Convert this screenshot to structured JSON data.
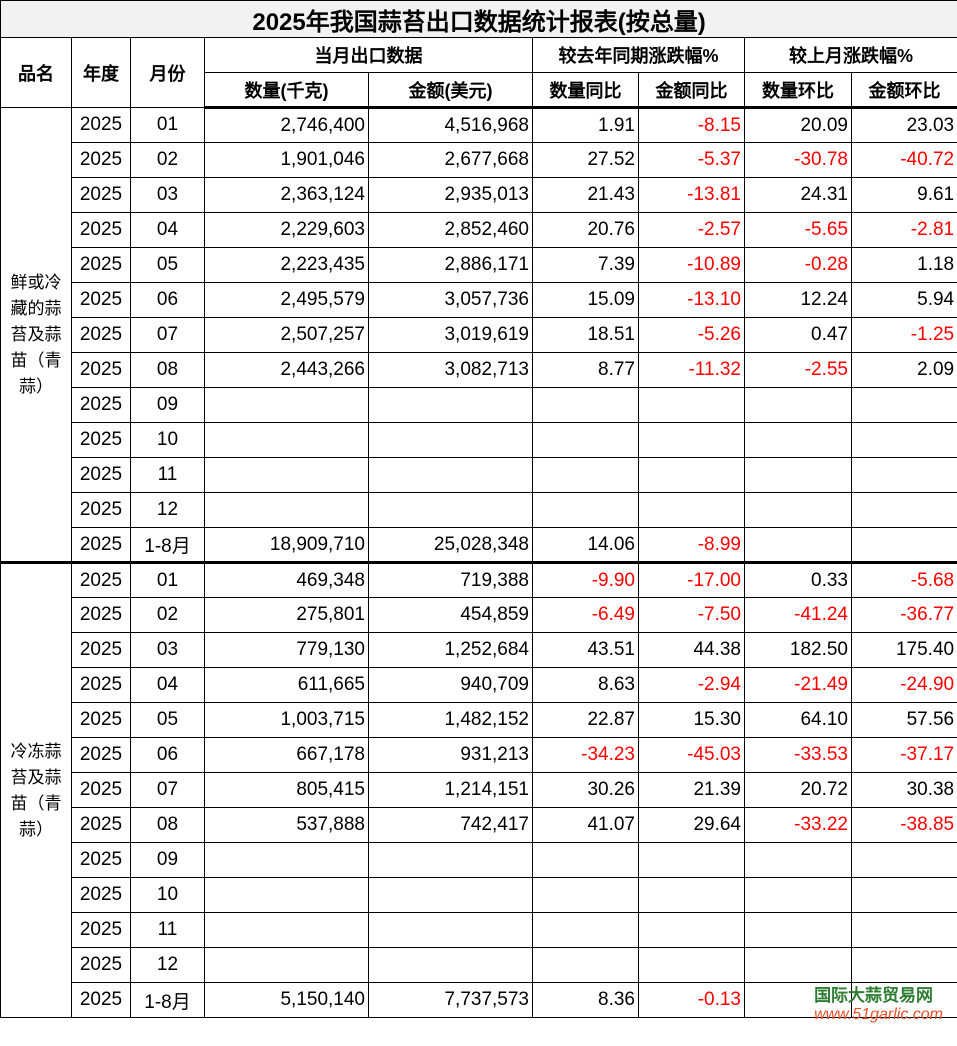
{
  "title": "2025年我国蒜苔出口数据统计报表(按总量)",
  "headers": {
    "product": "品名",
    "year": "年度",
    "month": "月份",
    "monthly": "当月出口数据",
    "yoy": "较去年同期涨跌幅%",
    "mom": "较上月涨跌幅%",
    "qty": "数量(千克)",
    "amt": "金额(美元)",
    "qty_yoy": "数量同比",
    "amt_yoy": "金额同比",
    "qty_mom": "数量环比",
    "amt_mom": "金额环比"
  },
  "negative_color": "#ff0000",
  "groups": [
    {
      "product": "鲜或冷藏的蒜苔及蒜苗（青蒜）",
      "rows": [
        [
          "2025",
          "01",
          "2,746,400",
          "4,516,968",
          "1.91",
          "-8.15",
          "20.09",
          "23.03"
        ],
        [
          "2025",
          "02",
          "1,901,046",
          "2,677,668",
          "27.52",
          "-5.37",
          "-30.78",
          "-40.72"
        ],
        [
          "2025",
          "03",
          "2,363,124",
          "2,935,013",
          "21.43",
          "-13.81",
          "24.31",
          "9.61"
        ],
        [
          "2025",
          "04",
          "2,229,603",
          "2,852,460",
          "20.76",
          "-2.57",
          "-5.65",
          "-2.81"
        ],
        [
          "2025",
          "05",
          "2,223,435",
          "2,886,171",
          "7.39",
          "-10.89",
          "-0.28",
          "1.18"
        ],
        [
          "2025",
          "06",
          "2,495,579",
          "3,057,736",
          "15.09",
          "-13.10",
          "12.24",
          "5.94"
        ],
        [
          "2025",
          "07",
          "2,507,257",
          "3,019,619",
          "18.51",
          "-5.26",
          "0.47",
          "-1.25"
        ],
        [
          "2025",
          "08",
          "2,443,266",
          "3,082,713",
          "8.77",
          "-11.32",
          "-2.55",
          "2.09"
        ],
        [
          "2025",
          "09",
          "",
          "",
          "",
          "",
          "",
          ""
        ],
        [
          "2025",
          "10",
          "",
          "",
          "",
          "",
          "",
          ""
        ],
        [
          "2025",
          "11",
          "",
          "",
          "",
          "",
          "",
          ""
        ],
        [
          "2025",
          "12",
          "",
          "",
          "",
          "",
          "",
          ""
        ],
        [
          "2025",
          "1-8月",
          "18,909,710",
          "25,028,348",
          "14.06",
          "-8.99",
          "",
          ""
        ]
      ]
    },
    {
      "product": "冷冻蒜苔及蒜苗（青蒜）",
      "rows": [
        [
          "2025",
          "01",
          "469,348",
          "719,388",
          "-9.90",
          "-17.00",
          "0.33",
          "-5.68"
        ],
        [
          "2025",
          "02",
          "275,801",
          "454,859",
          "-6.49",
          "-7.50",
          "-41.24",
          "-36.77"
        ],
        [
          "2025",
          "03",
          "779,130",
          "1,252,684",
          "43.51",
          "44.38",
          "182.50",
          "175.40"
        ],
        [
          "2025",
          "04",
          "611,665",
          "940,709",
          "8.63",
          "-2.94",
          "-21.49",
          "-24.90"
        ],
        [
          "2025",
          "05",
          "1,003,715",
          "1,482,152",
          "22.87",
          "15.30",
          "64.10",
          "57.56"
        ],
        [
          "2025",
          "06",
          "667,178",
          "931,213",
          "-34.23",
          "-45.03",
          "-33.53",
          "-37.17"
        ],
        [
          "2025",
          "07",
          "805,415",
          "1,214,151",
          "30.26",
          "21.39",
          "20.72",
          "30.38"
        ],
        [
          "2025",
          "08",
          "537,888",
          "742,417",
          "41.07",
          "29.64",
          "-33.22",
          "-38.85"
        ],
        [
          "2025",
          "09",
          "",
          "",
          "",
          "",
          "",
          ""
        ],
        [
          "2025",
          "10",
          "",
          "",
          "",
          "",
          "",
          ""
        ],
        [
          "2025",
          "11",
          "",
          "",
          "",
          "",
          "",
          ""
        ],
        [
          "2025",
          "12",
          "",
          "",
          "",
          "",
          "",
          ""
        ],
        [
          "2025",
          "1-8月",
          "5,150,140",
          "7,737,573",
          "8.36",
          "-0.13",
          "",
          ""
        ]
      ]
    }
  ],
  "watermark": {
    "name": "国际大蒜贸易网",
    "url": "www.51garlic.com",
    "logo_icon": "garlic-logo-icon"
  }
}
